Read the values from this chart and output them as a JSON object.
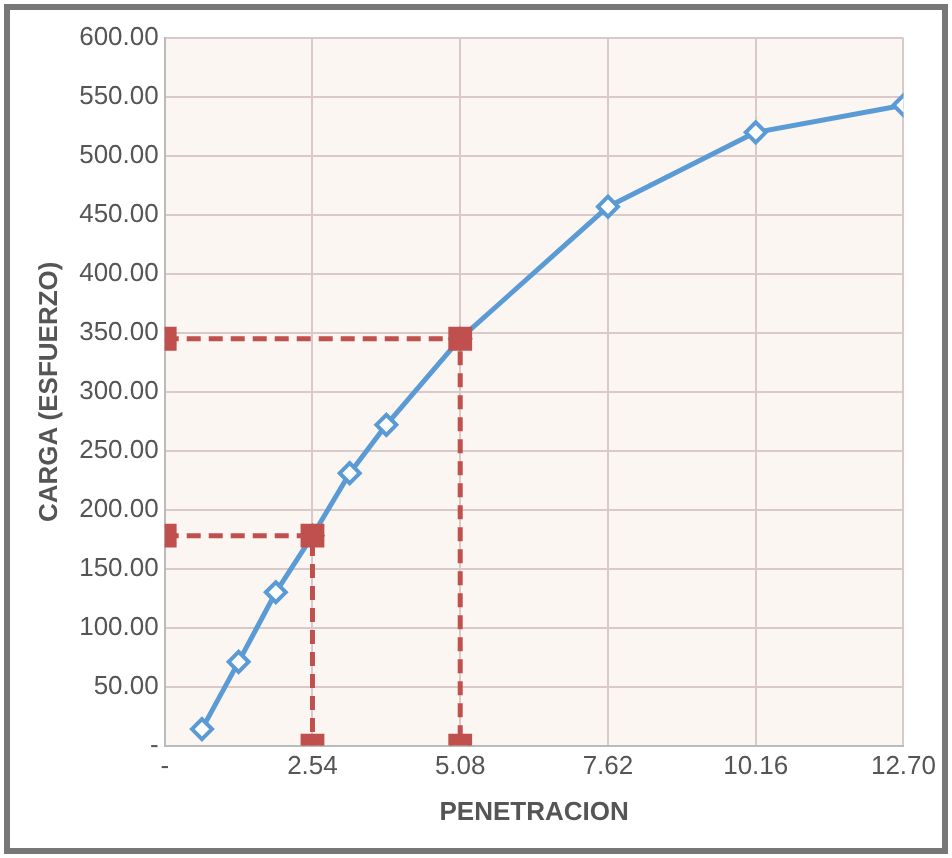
{
  "chart_data": {
    "type": "line",
    "xlabel": "PENETRACION",
    "ylabel": "CARGA (ESFUERZO)",
    "xlim": [
      0,
      12.7
    ],
    "xticks": [
      {
        "value": 0,
        "label": "-"
      },
      2.54,
      5.08,
      7.62,
      10.16,
      {
        "value": 12.7,
        "label": "12.70"
      }
    ],
    "ylim": [
      0,
      600
    ],
    "yticks": [
      {
        "value": 0,
        "label": "-"
      },
      {
        "value": 50,
        "label": "50.00"
      },
      {
        "value": 100,
        "label": "100.00"
      },
      {
        "value": 150,
        "label": "150.00"
      },
      {
        "value": 200,
        "label": "200.00"
      },
      {
        "value": 250,
        "label": "250.00"
      },
      {
        "value": 300,
        "label": "300.00"
      },
      {
        "value": 350,
        "label": "350.00"
      },
      {
        "value": 400,
        "label": "400.00"
      },
      {
        "value": 450,
        "label": "450.00"
      },
      {
        "value": 500,
        "label": "500.00"
      },
      {
        "value": 550,
        "label": "550.00"
      },
      {
        "value": 600,
        "label": "600.00"
      }
    ],
    "grid": true,
    "legend": false,
    "series": [
      {
        "color": "#5b9bd5",
        "marker": "diamond",
        "line_style": "solid",
        "x": [
          0.64,
          1.27,
          1.91,
          2.54,
          3.18,
          3.81,
          5.08,
          7.62,
          10.16,
          12.7
        ],
        "values": [
          14,
          71,
          130,
          178,
          231,
          272,
          345,
          457,
          520,
          543
        ]
      },
      {
        "color": "#c0504d",
        "marker": "square",
        "line_style": "dashed",
        "x": [
          0,
          5.08,
          5.08
        ],
        "values": [
          345,
          345,
          0
        ]
      },
      {
        "color": "#c0504d",
        "marker": "square",
        "line_style": "dashed",
        "x": [
          0,
          2.54,
          2.54
        ],
        "values": [
          178,
          178,
          0
        ]
      }
    ]
  }
}
